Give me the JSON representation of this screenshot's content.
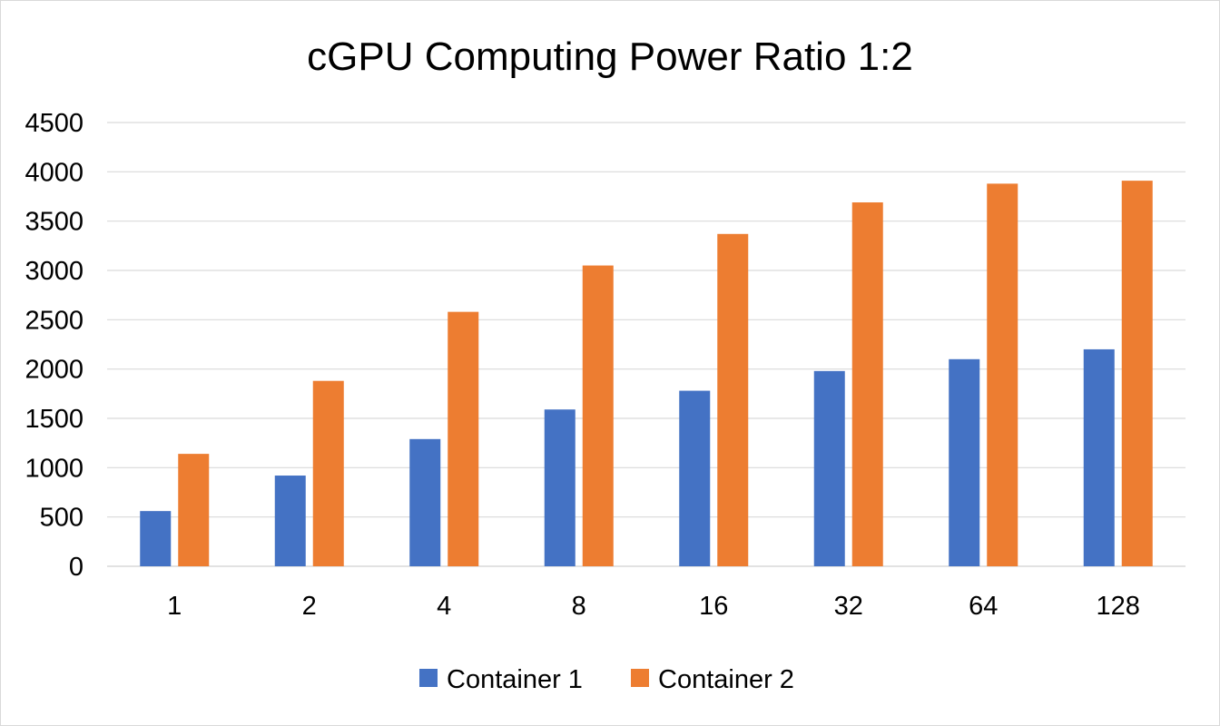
{
  "chart_data": {
    "type": "bar",
    "title": "cGPU Computing Power Ratio 1:2",
    "xlabel": "",
    "ylabel": "",
    "categories": [
      "1",
      "2",
      "4",
      "8",
      "16",
      "32",
      "64",
      "128"
    ],
    "series": [
      {
        "name": "Container 1",
        "color": "#4472C4",
        "values": [
          560,
          920,
          1290,
          1590,
          1780,
          1980,
          2100,
          2200
        ]
      },
      {
        "name": "Container 2",
        "color": "#ED7D31",
        "values": [
          1140,
          1880,
          2580,
          3050,
          3370,
          3690,
          3880,
          3910
        ]
      }
    ],
    "ylim": [
      0,
      4500
    ],
    "yticks": [
      0,
      500,
      1000,
      1500,
      2000,
      2500,
      3000,
      3500,
      4000,
      4500
    ],
    "grid": true,
    "gridline_color": "#d9d9d9",
    "legend_position": "bottom"
  }
}
